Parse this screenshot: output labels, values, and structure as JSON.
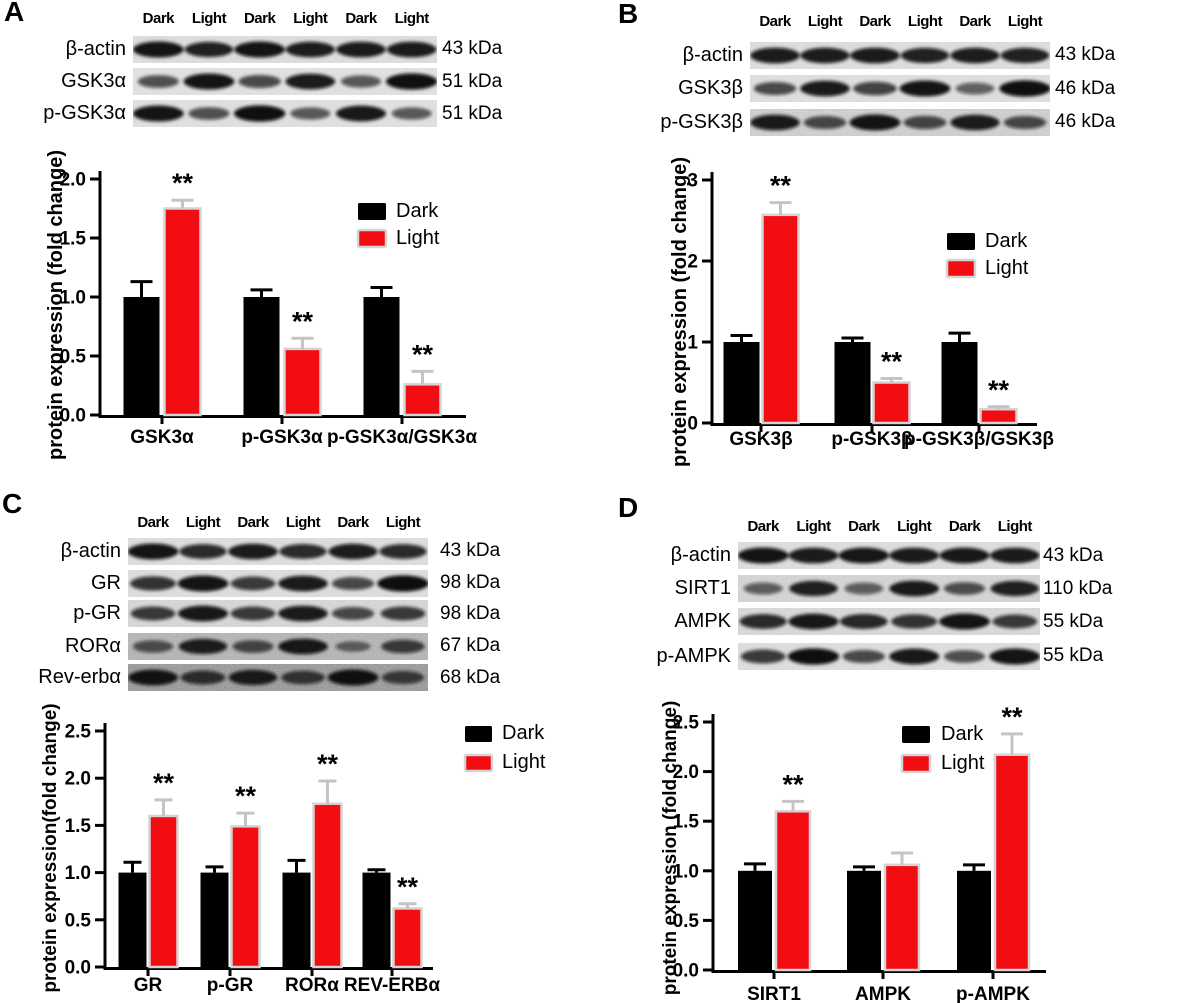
{
  "figure": {
    "background": "#ffffff",
    "colors": {
      "dark_series": "#000000",
      "light_series": "#f20d13",
      "bar_outline": "#d4d4d4",
      "error_bar_dark": "#000000",
      "error_bar_light": "#c4c4c4",
      "text": "#000000"
    },
    "panels": [
      {
        "letter": "A",
        "lane_labels": [
          "Dark",
          "Light",
          "Dark",
          "Light",
          "Dark",
          "Light"
        ],
        "blot_rows": [
          {
            "label": "β-actin",
            "kda": "43 kDa",
            "bands": [
              0.95,
              0.85,
              0.95,
              0.88,
              0.9,
              0.9
            ],
            "bg": "#ececec",
            "noise": 0.07
          },
          {
            "label": "GSK3α",
            "kda": "51 kDa",
            "bands": [
              0.55,
              0.95,
              0.6,
              0.9,
              0.5,
              0.97
            ],
            "bg": "#f0f0f0",
            "noise": 0.07
          },
          {
            "label": "p-GSK3α",
            "kda": "51 kDa",
            "bands": [
              0.95,
              0.55,
              0.97,
              0.5,
              0.92,
              0.5
            ],
            "bg": "#efefef",
            "noise": 0.07
          }
        ]
      },
      {
        "letter": "B",
        "lane_labels": [
          "Dark",
          "Light",
          "Dark",
          "Light",
          "Dark",
          "Light"
        ],
        "blot_rows": [
          {
            "label": "β-actin",
            "kda": "43 kDa",
            "bands": [
              0.9,
              0.88,
              0.9,
              0.85,
              0.88,
              0.86
            ],
            "bg": "#ececec",
            "noise": 0.07
          },
          {
            "label": "GSK3β",
            "kda": "46 kDa",
            "bands": [
              0.6,
              0.9,
              0.65,
              0.95,
              0.45,
              0.97
            ],
            "bg": "#efefef",
            "noise": 0.08
          },
          {
            "label": "p-GSK3β",
            "kda": "46 kDa",
            "bands": [
              0.9,
              0.6,
              0.95,
              0.62,
              0.88,
              0.6
            ],
            "bg": "#e9e9e9",
            "noise": 0.12
          }
        ]
      },
      {
        "letter": "C",
        "lane_labels": [
          "Dark",
          "Light",
          "Dark",
          "Light",
          "Dark",
          "Light"
        ],
        "blot_rows": [
          {
            "label": "β-actin",
            "kda": "43 kDa",
            "bands": [
              0.95,
              0.8,
              0.9,
              0.8,
              0.88,
              0.8
            ],
            "bg": "#ececec",
            "noise": 0.07
          },
          {
            "label": "GR",
            "kda": "98 kDa",
            "bands": [
              0.75,
              0.95,
              0.7,
              0.9,
              0.6,
              0.98
            ],
            "bg": "#eeeeee",
            "noise": 0.08
          },
          {
            "label": "p-GR",
            "kda": "98 kDa",
            "bands": [
              0.7,
              0.92,
              0.7,
              0.9,
              0.6,
              0.7
            ],
            "bg": "#ececec",
            "noise": 0.1
          },
          {
            "label": "RORα",
            "kda": "67 kDa",
            "bands": [
              0.5,
              0.85,
              0.55,
              0.9,
              0.3,
              0.65
            ],
            "bg": "#e3e3e3",
            "noise": 0.22
          },
          {
            "label": "Rev-erbα",
            "kda": "68 kDa",
            "bands": [
              0.92,
              0.7,
              0.85,
              0.65,
              0.95,
              0.6
            ],
            "bg": "#d9d9d9",
            "noise": 0.3
          }
        ]
      },
      {
        "letter": "D",
        "lane_labels": [
          "Dark",
          "Light",
          "Dark",
          "Light",
          "Dark",
          "Light"
        ],
        "blot_rows": [
          {
            "label": "β-actin",
            "kda": "43 kDa",
            "bands": [
              0.95,
              0.9,
              0.93,
              0.9,
              0.92,
              0.9
            ],
            "bg": "#ececec",
            "noise": 0.07
          },
          {
            "label": "SIRT1",
            "kda": "110 kDa",
            "bands": [
              0.45,
              0.85,
              0.45,
              0.9,
              0.55,
              0.85
            ],
            "bg": "#eeeeee",
            "noise": 0.12
          },
          {
            "label": "AMPK",
            "kda": "55 kDa",
            "bands": [
              0.8,
              0.92,
              0.82,
              0.75,
              0.95,
              0.7
            ],
            "bg": "#ececec",
            "noise": 0.09
          },
          {
            "label": "p-AMPK",
            "kda": "55 kDa",
            "bands": [
              0.7,
              0.97,
              0.6,
              0.92,
              0.55,
              0.95
            ],
            "bg": "#eeeeee",
            "noise": 0.08
          }
        ]
      }
    ]
  },
  "chart_data": [
    {
      "panel": "A",
      "type": "bar",
      "ylabel": "protein expression (fold change)",
      "xlabel": "",
      "ylim": [
        0,
        2.0
      ],
      "yticks": [
        "0.0",
        "0.5",
        "1.0",
        "1.5",
        "2.0"
      ],
      "categories": [
        "GSK3α",
        "p-GSK3α",
        "p-GSK3α/GSK3α"
      ],
      "series": [
        {
          "name": "Dark",
          "values": [
            1.0,
            1.0,
            1.0
          ],
          "errors": [
            0.13,
            0.06,
            0.08
          ]
        },
        {
          "name": "Light",
          "values": [
            1.75,
            0.56,
            0.26
          ],
          "errors": [
            0.07,
            0.09,
            0.11
          ]
        }
      ],
      "significance_on_light": [
        "**",
        "**",
        "**"
      ],
      "legend_position": "upper right inside",
      "grid": false
    },
    {
      "panel": "B",
      "type": "bar",
      "ylabel": "protein expression (fold change)",
      "xlabel": "",
      "ylim": [
        0,
        3
      ],
      "yticks": [
        "0",
        "1",
        "2",
        "3"
      ],
      "categories": [
        "GSK3β",
        "p-GSK3β",
        "p-GSK3β/GSK3β"
      ],
      "series": [
        {
          "name": "Dark",
          "values": [
            1.0,
            1.0,
            1.0
          ],
          "errors": [
            0.08,
            0.05,
            0.11
          ]
        },
        {
          "name": "Light",
          "values": [
            2.57,
            0.5,
            0.17
          ],
          "errors": [
            0.15,
            0.05,
            0.03
          ]
        }
      ],
      "significance_on_light": [
        "**",
        "**",
        "**"
      ],
      "legend_position": "middle right inside",
      "grid": false
    },
    {
      "panel": "C",
      "type": "bar",
      "ylabel": "protein expression(fold change)",
      "xlabel": "",
      "ylim": [
        0,
        2.5
      ],
      "yticks": [
        "0.0",
        "0.5",
        "1.0",
        "1.5",
        "2.0",
        "2.5"
      ],
      "categories": [
        "GR",
        "p-GR",
        "RORα",
        "REV-ERBα"
      ],
      "series": [
        {
          "name": "Dark",
          "values": [
            1.0,
            1.0,
            1.0,
            1.0
          ],
          "errors": [
            0.11,
            0.06,
            0.13,
            0.03
          ]
        },
        {
          "name": "Light",
          "values": [
            1.6,
            1.49,
            1.73,
            0.62
          ],
          "errors": [
            0.17,
            0.14,
            0.24,
            0.05
          ]
        }
      ],
      "significance_on_light": [
        "**",
        "**",
        "**",
        "**"
      ],
      "legend_position": "upper right inside",
      "grid": false
    },
    {
      "panel": "D",
      "type": "bar",
      "ylabel": "protein expression (fold change)",
      "xlabel": "",
      "ylim": [
        0,
        2.5
      ],
      "yticks": [
        "0.0",
        "0.5",
        "1.0",
        "1.5",
        "2.0",
        "2.5"
      ],
      "categories": [
        "SIRT1",
        "AMPK",
        "p-AMPK"
      ],
      "series": [
        {
          "name": "Dark",
          "values": [
            1.0,
            1.0,
            1.0
          ],
          "errors": [
            0.07,
            0.04,
            0.06
          ]
        },
        {
          "name": "Light",
          "values": [
            1.6,
            1.06,
            2.17
          ],
          "errors": [
            0.1,
            0.12,
            0.21
          ]
        }
      ],
      "significance_on_light": [
        "**",
        "",
        "**"
      ],
      "legend_position": "upper middle inside",
      "grid": false
    }
  ]
}
